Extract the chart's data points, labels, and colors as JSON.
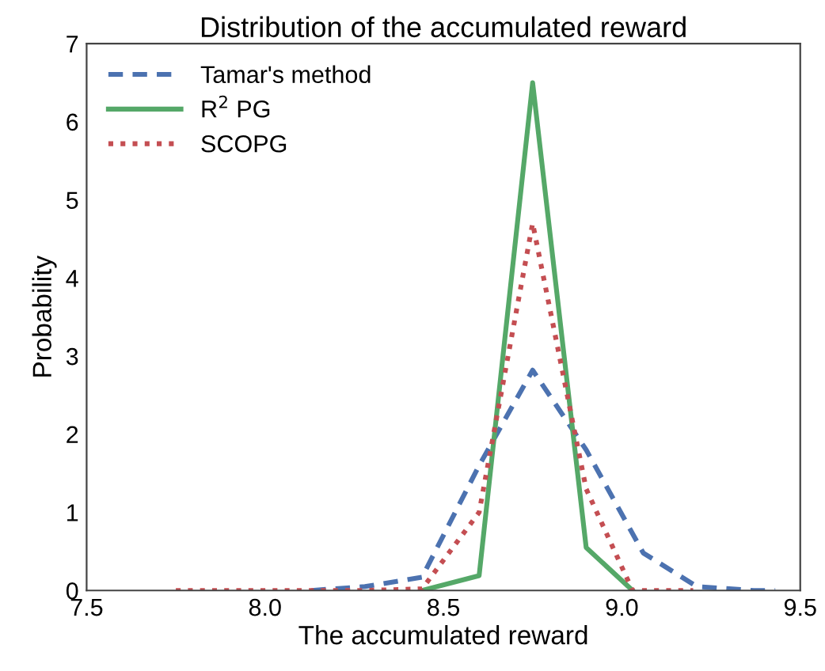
{
  "chart_data": {
    "type": "line",
    "title": "Distribution of the accumulated reward",
    "xlabel": "The accumulated reward",
    "ylabel": "Probability",
    "xlim": [
      7.5,
      9.5
    ],
    "xticks": [
      {
        "value": 7.5,
        "label": "7.5"
      },
      {
        "value": 8.0,
        "label": "8.0"
      },
      {
        "value": 8.5,
        "label": "8.5"
      },
      {
        "value": 9.0,
        "label": "9.0"
      },
      {
        "value": 9.5,
        "label": "9.5"
      }
    ],
    "ylim": [
      0,
      7
    ],
    "yticks": [
      0,
      1,
      2,
      3,
      4,
      5,
      6,
      7
    ],
    "grid": false,
    "legend": "top left",
    "series": [
      {
        "name": "Tamar's method",
        "color": "#4c72b0",
        "line_style": "dashed",
        "x": [
          8.13,
          8.28,
          8.44,
          8.6,
          8.75,
          8.9,
          9.06,
          9.21,
          9.37,
          9.43
        ],
        "values": [
          0,
          0.05,
          0.17,
          1.6,
          2.82,
          1.8,
          0.48,
          0.05,
          0,
          0
        ]
      },
      {
        "name": "R$^{2}$ PG",
        "color": "#55a868",
        "line_style": "solid",
        "x": [
          8.44,
          8.6,
          8.75,
          8.9,
          9.03
        ],
        "values": [
          0,
          0.19,
          6.5,
          0.55,
          0
        ]
      },
      {
        "name": "SCOPG",
        "color": "#c44e52",
        "line_style": "dotted",
        "x": [
          7.75,
          7.97,
          8.13,
          8.28,
          8.44,
          8.6,
          8.75,
          8.9,
          9.03,
          9.2
        ],
        "values": [
          0,
          0,
          0,
          0,
          0.02,
          1.0,
          4.7,
          1.3,
          0,
          0
        ]
      }
    ]
  }
}
